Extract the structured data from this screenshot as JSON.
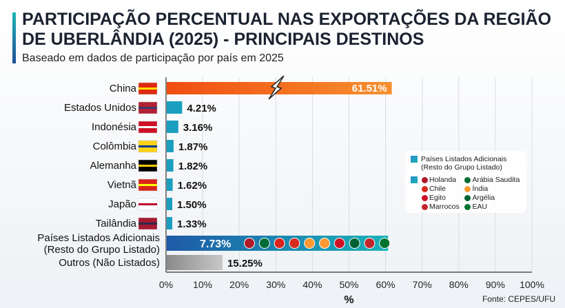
{
  "title": "PARTICIPAÇÃO PERCENTUAL NAS EXPORTAÇÕES DA REGIÃO DE UBERLÂNDIA (2025) - PRINCIPAIS DESTINOS",
  "subtitle": "Baseado em dados de participação por país em 2025",
  "source": "Fonte: CEPES/UFU",
  "chart_data": {
    "type": "bar",
    "orientation": "horizontal",
    "categories": [
      "China",
      "Estados Unidos",
      "Indonésia",
      "Colômbia",
      "Alemanha",
      "Vietnã",
      "Japão",
      "Tailândia",
      "Países Listados Adicionais (Resto do Grupo Listado)",
      "Outros (Não Listados)"
    ],
    "values": [
      61.51,
      4.21,
      3.16,
      1.87,
      1.82,
      1.62,
      1.5,
      1.33,
      7.73,
      15.25
    ],
    "data_labels": [
      "61.51%",
      "4.21%",
      "3.16%",
      "1.87%",
      "1.82%",
      "1.62%",
      "1.50%",
      "1.33%",
      "7.73%",
      "15.25%"
    ],
    "xlabel": "%",
    "xlim": [
      0,
      100
    ],
    "xticks": [
      "0%",
      "10%",
      "20%",
      "30%",
      "40%",
      "50%",
      "60%",
      "70%",
      "80%",
      "90%",
      "100%"
    ],
    "grid": true,
    "broken_bar": "China",
    "colors": {
      "china": "#f26a1b",
      "top": "#1a9fc0",
      "additional": "#1e5aa8",
      "others": "#9a9a9a"
    },
    "legend": {
      "placement": "right",
      "title": "Países Listados Adicionais (Resto do Grupo Listado)",
      "items": [
        "Holanda",
        "Arábia Saudita",
        "Chile",
        "Índia",
        "Egito",
        "Argélia",
        "Marrocos",
        "EAU"
      ]
    }
  }
}
